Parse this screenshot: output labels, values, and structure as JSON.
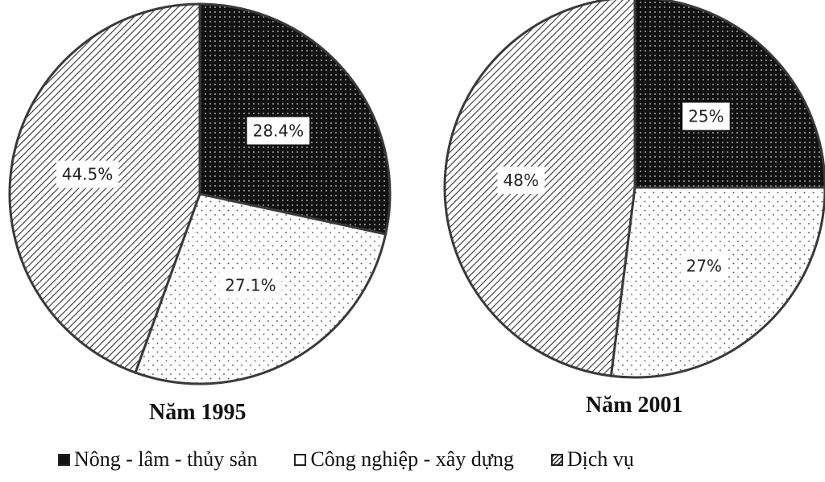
{
  "chart_data": [
    {
      "type": "pie",
      "title": "Năm 1995",
      "categories": [
        "Nông - lâm - thủy sản",
        "Công nghiệp - xây dựng",
        "Dịch vụ"
      ],
      "values": [
        28.4,
        27.1,
        44.5
      ],
      "labels": [
        "28.4%",
        "27.1%",
        "44.5%"
      ]
    },
    {
      "type": "pie",
      "title": "Năm 2001",
      "categories": [
        "Nông - lâm - thủy sản",
        "Công nghiệp - xây dựng",
        "Dịch vụ"
      ],
      "values": [
        25,
        27,
        48
      ],
      "labels": [
        "25%",
        "27%",
        "48%"
      ]
    }
  ],
  "legend": [
    {
      "label": "Nông - lâm - thủy sản",
      "pattern": "solid-black"
    },
    {
      "label": "Công nghiệp - xây dựng",
      "pattern": "dots"
    },
    {
      "label": "Dịch vụ",
      "pattern": "hatch"
    }
  ]
}
